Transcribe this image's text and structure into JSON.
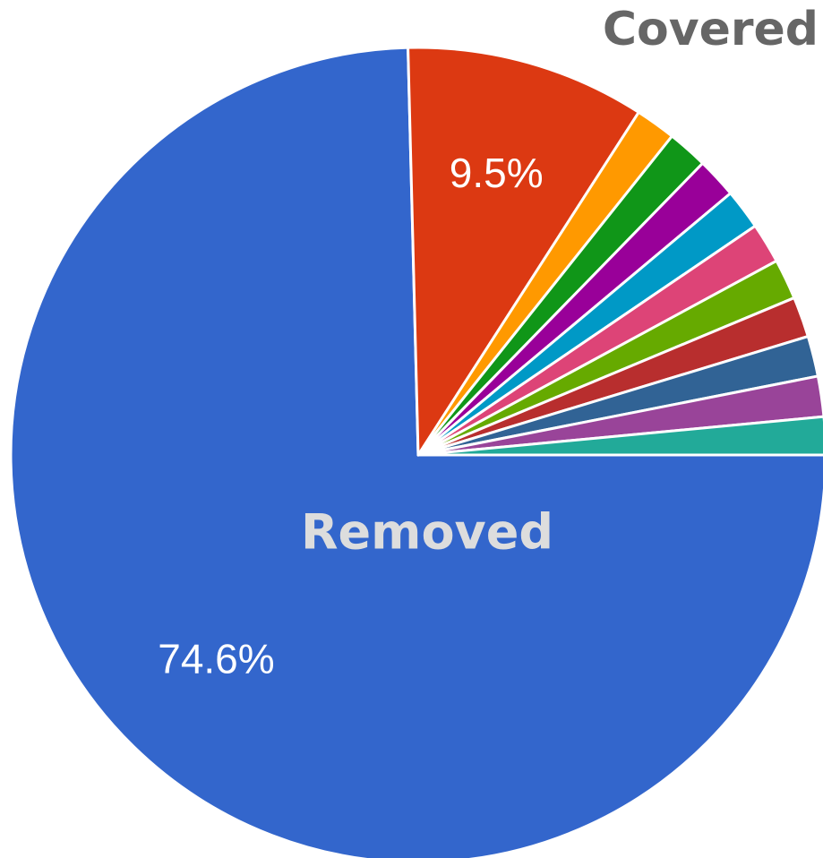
{
  "chart_data": {
    "type": "pie",
    "annotations": [
      "Covered",
      "Removed"
    ],
    "values": [
      74.6,
      9.5,
      1.6,
      1.6,
      1.6,
      1.6,
      1.6,
      1.6,
      1.6,
      1.6,
      1.6,
      1.5
    ],
    "value_labels": [
      "74.6%",
      "9.5%",
      null,
      null,
      null,
      null,
      null,
      null,
      null,
      null,
      null,
      null
    ],
    "colors": [
      "#3366cc",
      "#dc3912",
      "#ff9900",
      "#109618",
      "#990099",
      "#0099c6",
      "#dd4477",
      "#66aa00",
      "#b82e2e",
      "#316395",
      "#994499",
      "#22aa99"
    ]
  }
}
